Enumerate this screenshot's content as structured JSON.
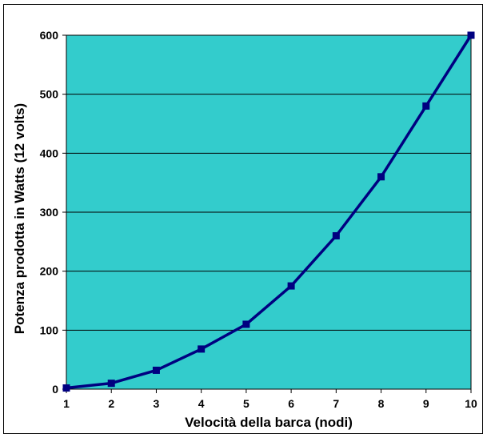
{
  "chart_data": {
    "type": "line",
    "title": "",
    "xlabel": "Velocità della barca (nodi)",
    "ylabel": "Potenza prodotta  in Watts (12 volts)",
    "x": [
      1,
      2,
      3,
      4,
      5,
      6,
      7,
      8,
      9,
      10
    ],
    "series": [
      {
        "values": [
          2,
          10,
          32,
          68,
          110,
          175,
          260,
          360,
          480,
          600
        ]
      }
    ],
    "xlim": [
      1,
      10
    ],
    "ylim": [
      0,
      600
    ],
    "x_ticks": [
      "1",
      "2",
      "3",
      "4",
      "5",
      "6",
      "7",
      "8",
      "9",
      "10"
    ],
    "y_ticks": [
      "0",
      "100",
      "200",
      "300",
      "400",
      "500",
      "600"
    ],
    "grid": "horizontal",
    "legend": "none",
    "colors": {
      "plot_background": "#33CCCC",
      "line": "#000080",
      "marker": "#000080",
      "gridline": "#000000"
    },
    "marker": "square"
  }
}
